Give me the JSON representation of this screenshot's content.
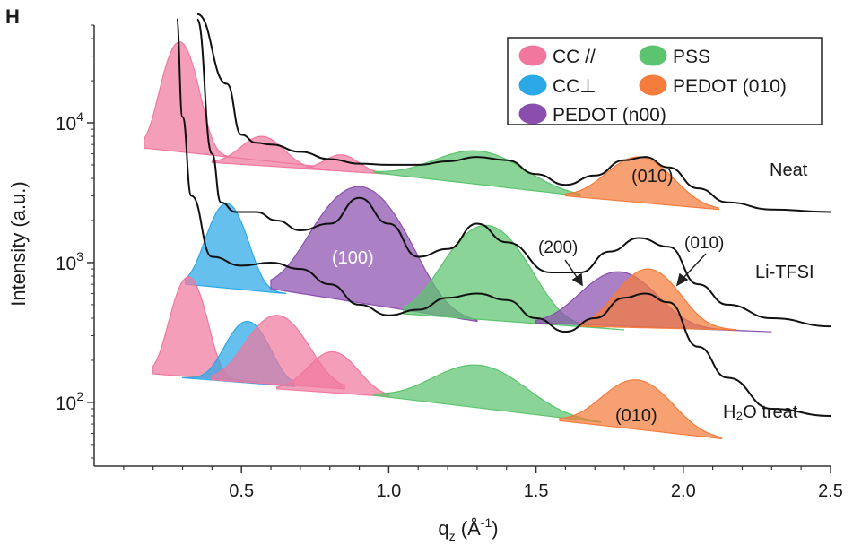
{
  "panel_label": "H",
  "chart_data": {
    "type": "area",
    "title": "",
    "xlabel": "q",
    "xlabel_sub": "z",
    "xlabel_unit_open": " (Å",
    "xlabel_unit_sup": "-1",
    "xlabel_unit_close": ")",
    "ylabel": "Intensity (a.u.)",
    "xlim": [
      0,
      2.5
    ],
    "ylim": [
      35,
      50000
    ],
    "y_scale": "log",
    "x_ticks": [
      "0.5",
      "1.0",
      "1.5",
      "2.0",
      "2.5"
    ],
    "x_tick_values": [
      0.5,
      1.0,
      1.5,
      2.0,
      2.5
    ],
    "y_ticks": [
      {
        "base": "10",
        "exp": "2",
        "value": 100
      },
      {
        "base": "10",
        "exp": "3",
        "value": 1000
      },
      {
        "base": "10",
        "exp": "4",
        "value": 10000
      }
    ],
    "grid": false,
    "legend_position": "top-right",
    "legend": [
      {
        "label": "CC //",
        "color": "#f0789f"
      },
      {
        "label": "PSS",
        "color": "#5cc46e"
      },
      {
        "label": "CC⊥",
        "color": "#2ba8e6"
      },
      {
        "label": "PEDOT (010)",
        "color": "#f47c3c"
      },
      {
        "label": "PEDOT (n00)",
        "color": "#8a4fae"
      }
    ],
    "sample_labels": [
      "Neat",
      "Li-TFSI",
      "H₂O treat"
    ],
    "annotations": [
      "(010)",
      "(100)",
      "(200)",
      "(010)",
      "(010)"
    ],
    "samples": [
      {
        "name": "Neat",
        "measured_curve": [
          [
            0.35,
            60000
          ],
          [
            0.45,
            19000
          ],
          [
            0.5,
            8200
          ],
          [
            0.55,
            7200
          ],
          [
            0.6,
            7000
          ],
          [
            0.7,
            6200
          ],
          [
            0.8,
            5500
          ],
          [
            0.9,
            5100
          ],
          [
            1.0,
            5000
          ],
          [
            1.1,
            5000
          ],
          [
            1.2,
            5300
          ],
          [
            1.3,
            5700
          ],
          [
            1.4,
            5400
          ],
          [
            1.5,
            4300
          ],
          [
            1.6,
            3600
          ],
          [
            1.7,
            4200
          ],
          [
            1.8,
            5400
          ],
          [
            1.87,
            5700
          ],
          [
            1.95,
            4800
          ],
          [
            2.05,
            3400
          ],
          [
            2.15,
            2700
          ],
          [
            2.3,
            2400
          ],
          [
            2.5,
            2300
          ]
        ],
        "peaks": [
          {
            "phase": "CC //",
            "center": 0.29,
            "peak": 38000,
            "base_start": 0.17,
            "base_end": 0.75,
            "baseline": [
              6600,
              4900
            ]
          },
          {
            "phase": "CC //",
            "center": 0.57,
            "peak": 8000,
            "base_start": 0.4,
            "base_end": 0.8,
            "baseline": [
              5200,
              4600
            ]
          },
          {
            "phase": "CC //",
            "center": 0.84,
            "peak": 5900,
            "base_start": 0.7,
            "base_end": 1.0,
            "baseline": [
              4700,
              4300
            ]
          },
          {
            "phase": "PSS",
            "center": 1.3,
            "peak": 6300,
            "base_start": 0.95,
            "base_end": 1.65,
            "baseline": [
              4400,
              3000
            ]
          },
          {
            "phase": "PEDOT (010)",
            "center": 1.85,
            "peak": 5700,
            "base_start": 1.6,
            "base_end": 2.12,
            "baseline": [
              3000,
              2400
            ]
          }
        ]
      },
      {
        "name": "Li-TFSI",
        "measured_curve": [
          [
            0.35,
            55000
          ],
          [
            0.4,
            6000
          ],
          [
            0.43,
            2700
          ],
          [
            0.48,
            2300
          ],
          [
            0.55,
            2300
          ],
          [
            0.62,
            2000
          ],
          [
            0.7,
            1700
          ],
          [
            0.8,
            1900
          ],
          [
            0.9,
            2900
          ],
          [
            1.0,
            1900
          ],
          [
            1.1,
            1100
          ],
          [
            1.2,
            1250
          ],
          [
            1.3,
            1900
          ],
          [
            1.4,
            1400
          ],
          [
            1.55,
            850
          ],
          [
            1.65,
            850
          ],
          [
            1.75,
            1200
          ],
          [
            1.85,
            1500
          ],
          [
            1.95,
            1300
          ],
          [
            2.05,
            700
          ],
          [
            2.15,
            500
          ],
          [
            2.3,
            400
          ],
          [
            2.5,
            350
          ]
        ],
        "peaks": [
          {
            "phase": "CC⊥",
            "center": 0.45,
            "peak": 2650,
            "base_start": 0.31,
            "base_end": 0.65,
            "baseline": [
              700,
              600
            ]
          },
          {
            "phase": "PEDOT (n00)",
            "center": 0.9,
            "peak": 3500,
            "base_start": 0.6,
            "base_end": 1.3,
            "baseline": [
              650,
              380
            ]
          },
          {
            "phase": "PSS",
            "center": 1.33,
            "peak": 1850,
            "base_start": 1.05,
            "base_end": 1.8,
            "baseline": [
              430,
              330
            ]
          },
          {
            "phase": "PEDOT (n00)",
            "center": 1.78,
            "peak": 860,
            "base_start": 1.5,
            "base_end": 2.3,
            "baseline": [
              370,
              320
            ]
          },
          {
            "phase": "PEDOT (010)",
            "center": 1.88,
            "peak": 900,
            "base_start": 1.65,
            "base_end": 2.18,
            "baseline": [
              350,
              330
            ]
          }
        ]
      },
      {
        "name": "H₂O treat",
        "measured_curve": [
          [
            0.28,
            55000
          ],
          [
            0.3,
            11000
          ],
          [
            0.33,
            3000
          ],
          [
            0.4,
            1100
          ],
          [
            0.5,
            950
          ],
          [
            0.6,
            1000
          ],
          [
            0.7,
            900
          ],
          [
            0.8,
            700
          ],
          [
            0.9,
            500
          ],
          [
            1.0,
            420
          ],
          [
            1.1,
            460
          ],
          [
            1.2,
            560
          ],
          [
            1.3,
            600
          ],
          [
            1.4,
            540
          ],
          [
            1.5,
            400
          ],
          [
            1.6,
            320
          ],
          [
            1.7,
            400
          ],
          [
            1.8,
            560
          ],
          [
            1.87,
            600
          ],
          [
            1.95,
            520
          ],
          [
            2.05,
            250
          ],
          [
            2.15,
            150
          ],
          [
            2.3,
            90
          ],
          [
            2.5,
            80
          ]
        ],
        "peaks": [
          {
            "phase": "CC //",
            "center": 0.32,
            "peak": 790,
            "base_start": 0.2,
            "base_end": 0.56,
            "baseline": [
              160,
              140
            ]
          },
          {
            "phase": "CC⊥",
            "center": 0.52,
            "peak": 380,
            "base_start": 0.3,
            "base_end": 0.68,
            "baseline": [
              150,
              130
            ]
          },
          {
            "phase": "CC //",
            "center": 0.62,
            "peak": 420,
            "base_start": 0.4,
            "base_end": 0.85,
            "baseline": [
              145,
              125
            ]
          },
          {
            "phase": "CC //",
            "center": 0.81,
            "peak": 230,
            "base_start": 0.62,
            "base_end": 1.0,
            "baseline": [
              125,
              110
            ]
          },
          {
            "phase": "PSS",
            "center": 1.3,
            "peak": 185,
            "base_start": 0.95,
            "base_end": 1.72,
            "baseline": [
              112,
              72
            ]
          },
          {
            "phase": "PEDOT (010)",
            "center": 1.84,
            "peak": 145,
            "base_start": 1.58,
            "base_end": 2.13,
            "baseline": [
              74,
              55
            ]
          }
        ]
      }
    ]
  }
}
